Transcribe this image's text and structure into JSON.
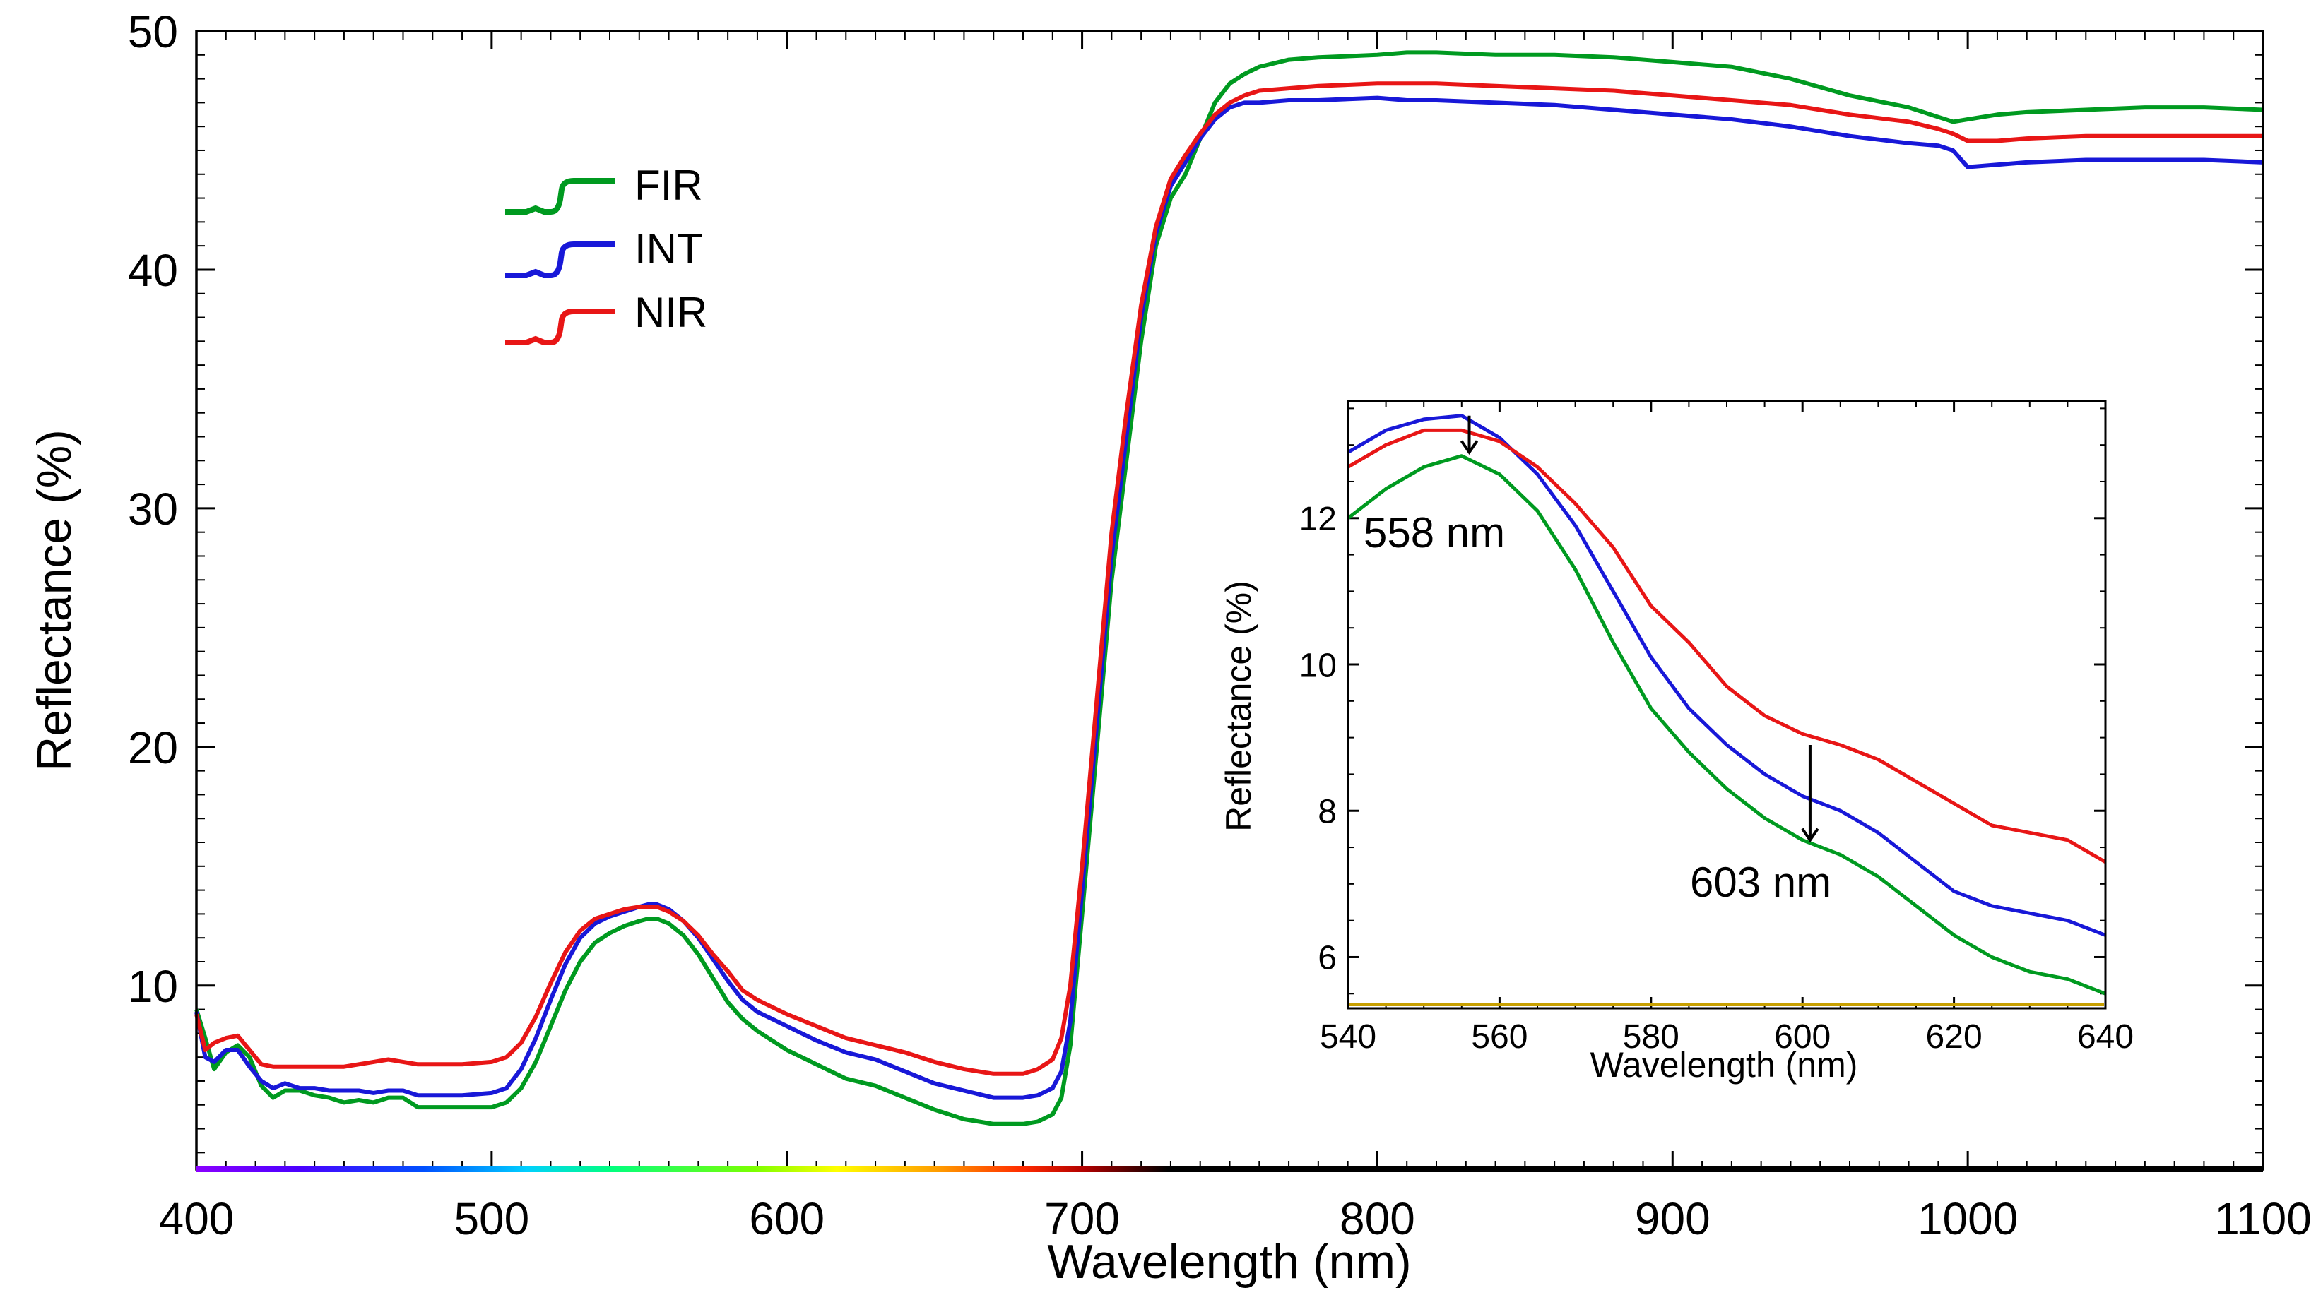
{
  "chart_data": [
    {
      "type": "line",
      "title": "",
      "xlabel": "Wavelength (nm)",
      "ylabel": "Reflectance (%)",
      "xlim": [
        400,
        1100
      ],
      "ylim": [
        2.3,
        50
      ],
      "xticks": [
        400,
        500,
        600,
        700,
        800,
        900,
        1000,
        1100
      ],
      "yticks": [
        10,
        20,
        30,
        40,
        50
      ],
      "grid": false,
      "legend_position": "top-left",
      "series": [
        {
          "name": "FIR",
          "color": "#009a20",
          "x": [
            400,
            403,
            406,
            410,
            414,
            418,
            422,
            426,
            430,
            435,
            440,
            445,
            450,
            455,
            460,
            465,
            470,
            475,
            480,
            490,
            500,
            505,
            510,
            515,
            520,
            525,
            530,
            535,
            540,
            545,
            550,
            553,
            556,
            560,
            565,
            570,
            575,
            580,
            585,
            590,
            600,
            610,
            620,
            630,
            640,
            650,
            660,
            670,
            680,
            685,
            690,
            693,
            696,
            700,
            705,
            710,
            715,
            720,
            725,
            730,
            735,
            740,
            745,
            750,
            755,
            760,
            770,
            780,
            800,
            810,
            820,
            840,
            860,
            880,
            900,
            920,
            940,
            960,
            980,
            990,
            995,
            1000,
            1010,
            1020,
            1040,
            1060,
            1080,
            1100
          ],
          "y": [
            9,
            7.8,
            6.5,
            7.2,
            7.5,
            7,
            5.8,
            5.3,
            5.6,
            5.6,
            5.4,
            5.3,
            5.1,
            5.2,
            5.1,
            5.3,
            5.3,
            4.9,
            4.9,
            4.9,
            4.9,
            5.1,
            5.7,
            6.8,
            8.3,
            9.8,
            11,
            11.8,
            12.2,
            12.5,
            12.7,
            12.8,
            12.8,
            12.6,
            12.1,
            11.3,
            10.3,
            9.3,
            8.6,
            8.1,
            7.3,
            6.7,
            6.1,
            5.8,
            5.3,
            4.8,
            4.4,
            4.2,
            4.2,
            4.3,
            4.6,
            5.3,
            7.5,
            13,
            20,
            27,
            32,
            37,
            41,
            43,
            44,
            45.5,
            47,
            47.8,
            48.2,
            48.5,
            48.8,
            48.9,
            49,
            49.1,
            49.1,
            49,
            49,
            48.9,
            48.7,
            48.5,
            48,
            47.3,
            46.8,
            46.4,
            46.2,
            46.3,
            46.5,
            46.6,
            46.7,
            46.8,
            46.8,
            46.7
          ]
        },
        {
          "name": "INT",
          "color": "#1818d8",
          "x": [
            400,
            403,
            406,
            410,
            414,
            418,
            422,
            426,
            430,
            435,
            440,
            445,
            450,
            455,
            460,
            465,
            470,
            475,
            480,
            490,
            500,
            505,
            510,
            515,
            520,
            525,
            530,
            535,
            540,
            545,
            550,
            553,
            556,
            560,
            565,
            570,
            575,
            580,
            585,
            590,
            600,
            610,
            620,
            630,
            640,
            650,
            660,
            670,
            680,
            685,
            690,
            693,
            696,
            700,
            705,
            710,
            715,
            720,
            725,
            730,
            735,
            740,
            745,
            750,
            755,
            760,
            770,
            780,
            800,
            810,
            820,
            840,
            860,
            880,
            900,
            920,
            940,
            960,
            980,
            990,
            995,
            1000,
            1010,
            1020,
            1040,
            1060,
            1080,
            1100
          ],
          "y": [
            8.9,
            7,
            6.8,
            7.3,
            7.3,
            6.6,
            6,
            5.7,
            5.9,
            5.7,
            5.7,
            5.6,
            5.6,
            5.6,
            5.5,
            5.6,
            5.6,
            5.4,
            5.4,
            5.4,
            5.5,
            5.7,
            6.5,
            7.8,
            9.4,
            10.9,
            12,
            12.6,
            12.9,
            13.1,
            13.3,
            13.4,
            13.4,
            13.2,
            12.7,
            12,
            11.1,
            10.2,
            9.4,
            8.9,
            8.3,
            7.7,
            7.2,
            6.9,
            6.4,
            5.9,
            5.6,
            5.3,
            5.3,
            5.4,
            5.7,
            6.4,
            8.5,
            14,
            21,
            28,
            33,
            38,
            41.5,
            43.5,
            44.5,
            45.5,
            46.3,
            46.8,
            47,
            47,
            47.1,
            47.1,
            47.2,
            47.1,
            47.1,
            47,
            46.9,
            46.7,
            46.5,
            46.3,
            46,
            45.6,
            45.3,
            45.2,
            45,
            44.3,
            44.4,
            44.5,
            44.6,
            44.6,
            44.6,
            44.5
          ]
        },
        {
          "name": "NIR",
          "color": "#e81616",
          "x": [
            400,
            403,
            406,
            410,
            414,
            418,
            422,
            426,
            430,
            435,
            440,
            445,
            450,
            455,
            460,
            465,
            470,
            475,
            480,
            490,
            500,
            505,
            510,
            515,
            520,
            525,
            530,
            535,
            540,
            545,
            550,
            553,
            556,
            560,
            565,
            570,
            575,
            580,
            585,
            590,
            600,
            610,
            620,
            630,
            640,
            650,
            660,
            670,
            680,
            685,
            690,
            693,
            696,
            700,
            705,
            710,
            715,
            720,
            725,
            730,
            735,
            740,
            745,
            750,
            755,
            760,
            770,
            780,
            800,
            810,
            820,
            840,
            860,
            880,
            900,
            920,
            940,
            960,
            980,
            990,
            995,
            1000,
            1010,
            1020,
            1040,
            1060,
            1080,
            1100
          ],
          "y": [
            8.8,
            7.3,
            7.6,
            7.8,
            7.9,
            7.3,
            6.7,
            6.6,
            6.6,
            6.6,
            6.6,
            6.6,
            6.6,
            6.7,
            6.8,
            6.9,
            6.8,
            6.7,
            6.7,
            6.7,
            6.8,
            7,
            7.6,
            8.7,
            10.1,
            11.4,
            12.3,
            12.8,
            13,
            13.2,
            13.3,
            13.3,
            13.3,
            13.1,
            12.7,
            12.1,
            11.3,
            10.6,
            9.8,
            9.4,
            8.8,
            8.3,
            7.8,
            7.5,
            7.2,
            6.8,
            6.5,
            6.3,
            6.3,
            6.5,
            6.9,
            7.8,
            10,
            15,
            22,
            29,
            34,
            38.5,
            41.8,
            43.8,
            44.8,
            45.7,
            46.5,
            47,
            47.3,
            47.5,
            47.6,
            47.7,
            47.8,
            47.8,
            47.8,
            47.7,
            47.6,
            47.5,
            47.3,
            47.1,
            46.9,
            46.5,
            46.2,
            45.9,
            45.7,
            45.4,
            45.4,
            45.5,
            45.6,
            45.6,
            45.6,
            45.6
          ]
        }
      ],
      "bottom_strip": "visible spectrum color bar along the x-axis from 400 to 700 nm"
    },
    {
      "type": "line",
      "title": "",
      "position": "inset right",
      "xlabel": "Wavelength (nm)",
      "ylabel": "Reflectance (%)",
      "xlim": [
        540,
        640
      ],
      "ylim": [
        5.3,
        13.6
      ],
      "xticks": [
        540,
        560,
        580,
        600,
        620,
        640
      ],
      "yticks": [
        6,
        8,
        10,
        12
      ],
      "grid": false,
      "series": [
        {
          "name": "FIR",
          "color": "#009a20",
          "x": [
            540,
            545,
            550,
            555,
            560,
            565,
            570,
            575,
            580,
            585,
            590,
            595,
            600,
            605,
            610,
            615,
            620,
            625,
            630,
            635,
            640
          ],
          "y": [
            12,
            12.4,
            12.7,
            12.85,
            12.6,
            12.1,
            11.3,
            10.3,
            9.4,
            8.8,
            8.3,
            7.9,
            7.6,
            7.4,
            7.1,
            6.7,
            6.3,
            6.0,
            5.8,
            5.7,
            5.5
          ]
        },
        {
          "name": "INT",
          "color": "#1818d8",
          "x": [
            540,
            545,
            550,
            555,
            560,
            565,
            570,
            575,
            580,
            585,
            590,
            595,
            600,
            605,
            610,
            615,
            620,
            625,
            630,
            635,
            640
          ],
          "y": [
            12.9,
            13.2,
            13.35,
            13.4,
            13.1,
            12.6,
            11.9,
            11.0,
            10.1,
            9.4,
            8.9,
            8.5,
            8.2,
            8.0,
            7.7,
            7.3,
            6.9,
            6.7,
            6.6,
            6.5,
            6.3
          ]
        },
        {
          "name": "NIR",
          "color": "#e81616",
          "x": [
            540,
            545,
            550,
            555,
            560,
            565,
            570,
            575,
            580,
            585,
            590,
            595,
            600,
            605,
            610,
            615,
            620,
            625,
            630,
            635,
            640
          ],
          "y": [
            12.7,
            13.0,
            13.2,
            13.2,
            13.05,
            12.7,
            12.2,
            11.6,
            10.8,
            10.3,
            9.7,
            9.3,
            9.05,
            8.9,
            8.7,
            8.4,
            8.1,
            7.8,
            7.7,
            7.6,
            7.3
          ]
        }
      ],
      "annotations": [
        {
          "text": "558 nm",
          "x": 556,
          "y_from": 13.4,
          "y_to": 12.9
        },
        {
          "text": "603 nm",
          "x": 601,
          "y_from": 8.9,
          "y_to": 7.6
        }
      ]
    }
  ]
}
